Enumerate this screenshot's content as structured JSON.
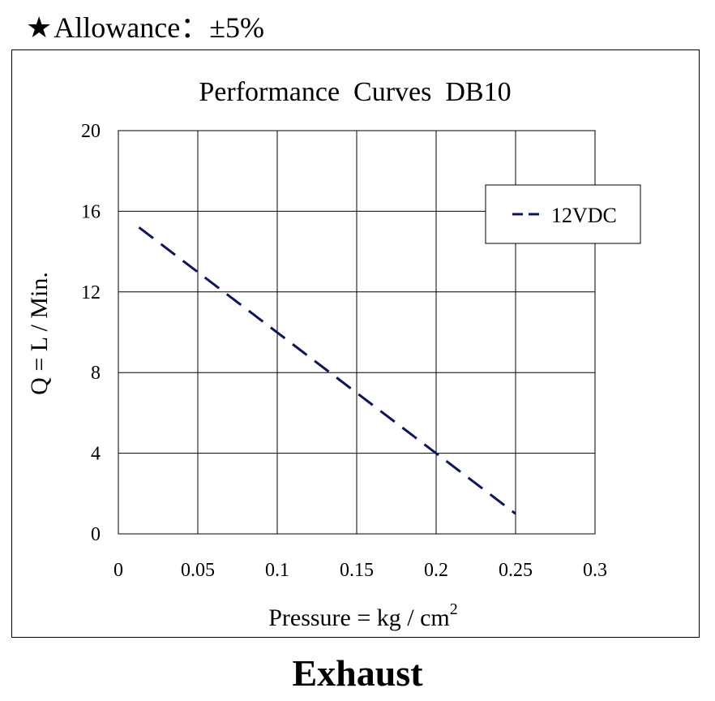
{
  "header": {
    "star_glyph": "★",
    "allowance_text": "Allowance：±5%"
  },
  "footer": {
    "label": "Exhaust"
  },
  "chart_data": {
    "type": "line",
    "title": "Performance  Curves  DB10",
    "xlabel": "Pressure = kg / cm",
    "xlabel_superscript": "2",
    "ylabel": "Q = L / Min.",
    "xlim": [
      0,
      0.3
    ],
    "ylim": [
      0,
      20
    ],
    "xticks": [
      0,
      0.05,
      0.1,
      0.15,
      0.2,
      0.25,
      0.3
    ],
    "xtick_labels": [
      "0",
      "0.05",
      "0.1",
      "0.15",
      "0.2",
      "0.25",
      "0.3"
    ],
    "yticks": [
      0,
      4,
      8,
      12,
      16,
      20
    ],
    "ytick_labels": [
      "0",
      "4",
      "8",
      "12",
      "16",
      "20"
    ],
    "grid": true,
    "legend_position": "top-right",
    "series": [
      {
        "name": "12VDC",
        "color": "#0b1463",
        "style": "dashed",
        "points": [
          [
            0.013,
            15.2
          ],
          [
            0.25,
            1.0
          ]
        ]
      }
    ]
  }
}
